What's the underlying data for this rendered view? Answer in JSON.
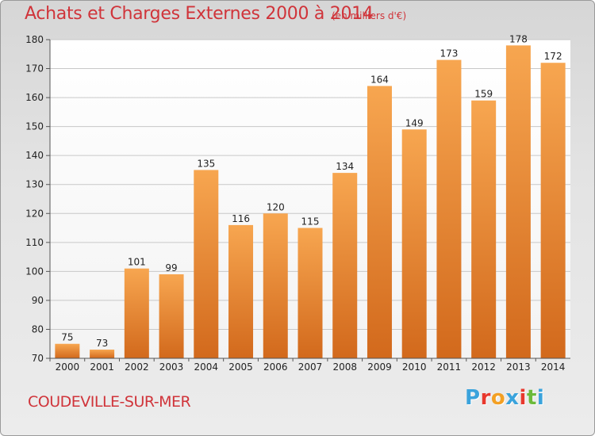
{
  "header": {
    "title": "Achats et Charges Externes 2000 à 2014",
    "subtitle": "(en milliers d'€)"
  },
  "footer": {
    "location": "COUDEVILLE-SUR-MER",
    "logo_text": "Proxiti",
    "logo_colors": [
      "#3aa3dc",
      "#e8382d",
      "#f3a024",
      "#3aa3dc",
      "#e8382d",
      "#6cba3a",
      "#3aa3dc"
    ]
  },
  "colors": {
    "bar_light": "#f7a650",
    "bar_dark": "#d2691c",
    "accent": "#d0343a",
    "grid": "#c8c8c8"
  },
  "chart_data": {
    "type": "bar",
    "title": "Achats et Charges Externes 2000 à 2014",
    "subtitle": "(en milliers d'€)",
    "categories": [
      "2000",
      "2001",
      "2002",
      "2003",
      "2004",
      "2005",
      "2006",
      "2007",
      "2008",
      "2009",
      "2010",
      "2011",
      "2012",
      "2013",
      "2014"
    ],
    "values": [
      75,
      73,
      101,
      99,
      135,
      116,
      120,
      115,
      134,
      164,
      149,
      173,
      159,
      178,
      172
    ],
    "ylim": [
      70,
      180
    ],
    "yticks": [
      70,
      80,
      90,
      100,
      110,
      120,
      130,
      140,
      150,
      160,
      170,
      180
    ],
    "grid": true,
    "xlabel": "",
    "ylabel": ""
  }
}
